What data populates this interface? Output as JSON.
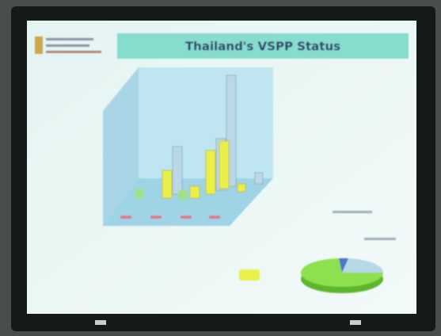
{
  "slide": {
    "title": "Thailand's VSPP Status"
  }
}
